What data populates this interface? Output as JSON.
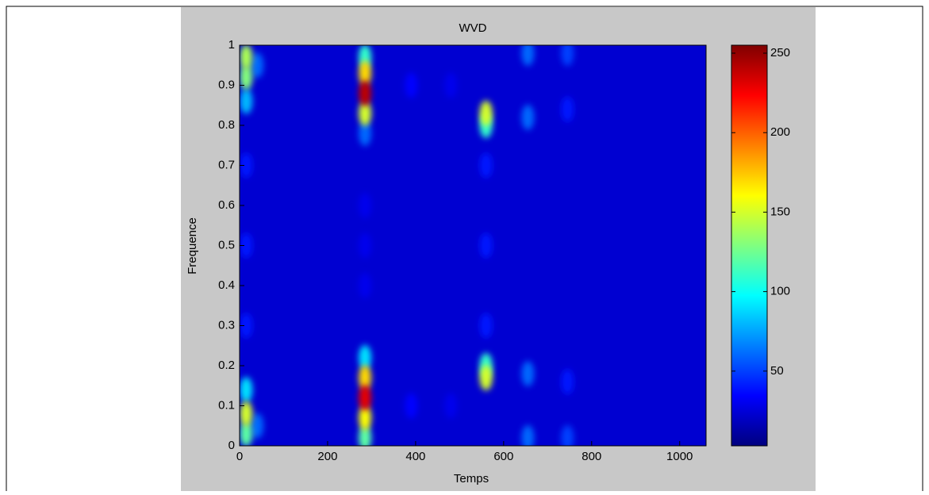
{
  "chart_data": {
    "type": "heatmap",
    "title": "WVD",
    "xlabel": "Temps",
    "ylabel": "Frequence",
    "colormap": "jet",
    "xlim": [
      0,
      1060
    ],
    "xticks": [
      0,
      200,
      400,
      600,
      800,
      1000
    ],
    "ylim": [
      0,
      1
    ],
    "yticks": [
      0,
      0.1,
      0.2,
      0.3,
      0.4,
      0.5,
      0.6,
      0.7,
      0.8,
      0.9,
      1
    ],
    "clim": [
      3,
      255
    ],
    "cticks": [
      50,
      100,
      150,
      200,
      250
    ],
    "x": [
      15,
      15,
      15,
      15,
      15,
      15,
      15,
      15,
      15,
      40,
      40,
      285,
      285,
      285,
      285,
      285,
      285,
      285,
      285,
      285,
      285,
      285,
      285,
      285,
      560,
      560,
      560,
      560,
      560,
      560,
      560,
      655,
      655,
      655,
      655,
      745,
      745,
      745,
      745,
      390,
      390,
      480,
      480
    ],
    "y": [
      0.03,
      0.08,
      0.14,
      0.3,
      0.5,
      0.7,
      0.86,
      0.92,
      0.97,
      0.05,
      0.95,
      0.02,
      0.07,
      0.12,
      0.17,
      0.22,
      0.4,
      0.5,
      0.6,
      0.78,
      0.83,
      0.88,
      0.93,
      0.97,
      0.17,
      0.2,
      0.3,
      0.5,
      0.7,
      0.8,
      0.83,
      0.02,
      0.18,
      0.82,
      0.98,
      0.02,
      0.16,
      0.84,
      0.98,
      0.1,
      0.9,
      0.1,
      0.9
    ],
    "values": [
      120,
      150,
      90,
      40,
      40,
      40,
      80,
      130,
      140,
      60,
      60,
      120,
      160,
      230,
      170,
      90,
      30,
      30,
      30,
      60,
      150,
      240,
      170,
      110,
      150,
      110,
      40,
      40,
      40,
      110,
      150,
      60,
      60,
      60,
      60,
      50,
      40,
      40,
      50,
      35,
      35,
      30,
      30
    ]
  }
}
